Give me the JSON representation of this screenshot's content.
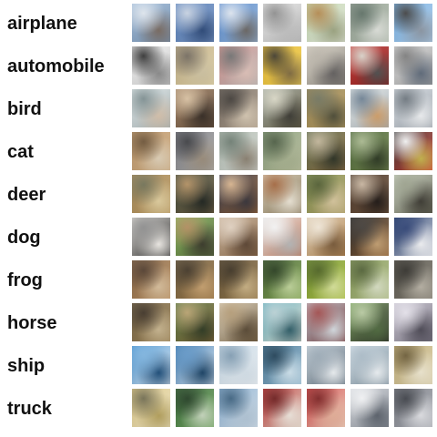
{
  "classes": [
    {
      "label": "airplane",
      "images": [
        {
          "name": "airplane-image-1",
          "colors": [
            "#9ab7d6",
            "#7d98b6",
            "#dfe6ee",
            "#7a6c63"
          ]
        },
        {
          "name": "airplane-image-2",
          "colors": [
            "#4f79b5",
            "#7e9ac6",
            "#c7d2e2",
            "#2d4a7a"
          ]
        },
        {
          "name": "airplane-image-3",
          "colors": [
            "#4f83c9",
            "#9bb9dc",
            "#dde5ef",
            "#6c6865"
          ]
        },
        {
          "name": "airplane-image-4",
          "colors": [
            "#e7e7e7",
            "#bdbdbd",
            "#8d8d8d",
            "#c2c2c2"
          ]
        },
        {
          "name": "airplane-image-5",
          "colors": [
            "#bcd2a7",
            "#e6eadf",
            "#b2874c",
            "#9ea682"
          ]
        },
        {
          "name": "airplane-image-6",
          "colors": [
            "#8e9a8d",
            "#b7c2b4",
            "#5c6e63",
            "#dfe2dc"
          ]
        },
        {
          "name": "airplane-image-7",
          "colors": [
            "#6aa8df",
            "#b5d3ef",
            "#3f3f3f",
            "#8d98a5"
          ]
        }
      ]
    },
    {
      "label": "automobile",
      "images": [
        {
          "name": "automobile-image-1",
          "colors": [
            "#f3f3f3",
            "#cfcfcf",
            "#2f2f2f",
            "#8b8b8b"
          ]
        },
        {
          "name": "automobile-image-2",
          "colors": [
            "#b7a57f",
            "#e6d7aa",
            "#736a5d",
            "#d0c4a3"
          ]
        },
        {
          "name": "automobile-image-3",
          "colors": [
            "#d78f89",
            "#b8b8b8",
            "#6f6f6f",
            "#e0c2b9"
          ]
        },
        {
          "name": "automobile-image-4",
          "colors": [
            "#e2b327",
            "#f4d45a",
            "#3f3929",
            "#806b40"
          ]
        },
        {
          "name": "automobile-image-5",
          "colors": [
            "#d7d1c4",
            "#8f8a82",
            "#b9b3a8",
            "#646160"
          ]
        },
        {
          "name": "automobile-image-6",
          "colors": [
            "#c53a37",
            "#8c1f1d",
            "#d8d2c8",
            "#4f4f4f"
          ]
        },
        {
          "name": "automobile-image-7",
          "colors": [
            "#d7d7d7",
            "#a4a4a4",
            "#7b7b7b",
            "#5f6b7b"
          ]
        }
      ]
    },
    {
      "label": "bird",
      "images": [
        {
          "name": "bird-image-1",
          "colors": [
            "#dfe7e8",
            "#a8b4b6",
            "#7c8d8f",
            "#d7c3ad"
          ]
        },
        {
          "name": "bird-image-2",
          "colors": [
            "#9a7b5d",
            "#6d5643",
            "#d7bf9f",
            "#362c24"
          ]
        },
        {
          "name": "bird-image-3",
          "colors": [
            "#6a6158",
            "#b9a895",
            "#3f3a35",
            "#d6c8b3"
          ]
        },
        {
          "name": "bird-image-4",
          "colors": [
            "#9fa79e",
            "#6d654b",
            "#d8d6c4",
            "#3c3b34"
          ]
        },
        {
          "name": "bird-image-5",
          "colors": [
            "#8c7a48",
            "#c0a56a",
            "#6f725c",
            "#4e4d38"
          ]
        },
        {
          "name": "bird-image-6",
          "colors": [
            "#e8ebe8",
            "#a7b1b9",
            "#6c7f91",
            "#d2a06a"
          ]
        },
        {
          "name": "bird-image-7",
          "colors": [
            "#d8dde2",
            "#9fa7b0",
            "#6b747c",
            "#f0f2f4"
          ]
        }
      ]
    },
    {
      "label": "cat",
      "images": [
        {
          "name": "cat-image-1",
          "colors": [
            "#b58f62",
            "#d6b48a",
            "#6a5134",
            "#e0d1b8"
          ]
        },
        {
          "name": "cat-image-2",
          "colors": [
            "#6f7078",
            "#b4b3b0",
            "#3b3c40",
            "#9b8d7b"
          ]
        },
        {
          "name": "cat-image-3",
          "colors": [
            "#a7b2a7",
            "#d9ddd8",
            "#6b7a6f",
            "#8b8171"
          ]
        },
        {
          "name": "cat-image-4",
          "colors": [
            "#79916e",
            "#c2c6a5",
            "#4b5b41",
            "#a7b18f"
          ]
        },
        {
          "name": "cat-image-5",
          "colors": [
            "#4d5e3f",
            "#9d7b4f",
            "#c0b397",
            "#2d3224"
          ]
        },
        {
          "name": "cat-image-6",
          "colors": [
            "#3f5b2f",
            "#7d8f57",
            "#a7b78d",
            "#2c3822"
          ]
        },
        {
          "name": "cat-image-7",
          "colors": [
            "#2b2b2b",
            "#e04a3e",
            "#f3f3f3",
            "#c7b54c"
          ]
        }
      ]
    },
    {
      "label": "deer",
      "images": [
        {
          "name": "deer-image-1",
          "colors": [
            "#9c7f4f",
            "#c4a36b",
            "#6f6f53",
            "#e1cf9f"
          ]
        },
        {
          "name": "deer-image-2",
          "colors": [
            "#2f3b2f",
            "#7e6b4b",
            "#b08d5f",
            "#1f241f"
          ]
        },
        {
          "name": "deer-image-3",
          "colors": [
            "#1f2b45",
            "#a56d3b",
            "#d7b28b",
            "#38343a"
          ]
        },
        {
          "name": "deer-image-4",
          "colors": [
            "#d5cbb4",
            "#8d7c5d",
            "#a2653c",
            "#ede6d7"
          ]
        },
        {
          "name": "deer-image-5",
          "colors": [
            "#7c8b4a",
            "#b4a66d",
            "#4e5a2e",
            "#d8c79e"
          ]
        },
        {
          "name": "deer-image-6",
          "colors": [
            "#3e2d22",
            "#7b5d44",
            "#c7b49e",
            "#1f1815"
          ]
        },
        {
          "name": "deer-image-7",
          "colors": [
            "#c1c9b8",
            "#6d6c5b",
            "#9aa08b",
            "#3d3b33"
          ]
        }
      ]
    },
    {
      "label": "dog",
      "images": [
        {
          "name": "dog-image-1",
          "colors": [
            "#d7d4cf",
            "#2f2f2f",
            "#8c8c8c",
            "#f0ede8"
          ]
        },
        {
          "name": "dog-image-2",
          "colors": [
            "#7fb052",
            "#5e6e45",
            "#b08a5b",
            "#3a3a2a"
          ]
        },
        {
          "name": "dog-image-3",
          "colors": [
            "#c8b29a",
            "#8e6b4a",
            "#e0d0bf",
            "#5d4634"
          ]
        },
        {
          "name": "dog-image-4",
          "colors": [
            "#e6e6e6",
            "#c57a5b",
            "#f4f4f4",
            "#b8b8b8"
          ]
        },
        {
          "name": "dog-image-5",
          "colors": [
            "#d8c7ad",
            "#b98b55",
            "#f0e6d6",
            "#7a5b3a"
          ]
        },
        {
          "name": "dog-image-6",
          "colors": [
            "#1f1f1f",
            "#9a6b3f",
            "#3f3a35",
            "#c4a072"
          ]
        },
        {
          "name": "dog-image-7",
          "colors": [
            "#112a5d",
            "#d9dde6",
            "#2b3f72",
            "#f3f4f7"
          ]
        }
      ]
    },
    {
      "label": "frog",
      "images": [
        {
          "name": "frog-image-1",
          "colors": [
            "#7a5a3a",
            "#c59a6b",
            "#4f3a2a",
            "#d9c09d"
          ]
        },
        {
          "name": "frog-image-2",
          "colors": [
            "#6b5a3c",
            "#a07b4b",
            "#3e3222",
            "#c7a16f"
          ]
        },
        {
          "name": "frog-image-3",
          "colors": [
            "#5b4a2f",
            "#9e8153",
            "#3a2f1f",
            "#c9b184"
          ]
        },
        {
          "name": "frog-image-4",
          "colors": [
            "#3c5a2b",
            "#8fb15e",
            "#253a1b",
            "#bfd49a"
          ]
        },
        {
          "name": "frog-image-5",
          "colors": [
            "#6a8a2a",
            "#b5c94b",
            "#4a5f1e",
            "#d8e39b"
          ]
        },
        {
          "name": "frog-image-6",
          "colors": [
            "#7b8f4f",
            "#b6c48a",
            "#4f5f33",
            "#d9e0c5"
          ]
        },
        {
          "name": "frog-image-7",
          "colors": [
            "#4d4a41",
            "#8a857a",
            "#2f2d28",
            "#b8b2a5"
          ]
        }
      ]
    },
    {
      "label": "horse",
      "images": [
        {
          "name": "horse-image-1",
          "colors": [
            "#6b5a3b",
            "#a58b5e",
            "#3b2f22",
            "#c9b690"
          ]
        },
        {
          "name": "horse-image-2",
          "colors": [
            "#4b6e3a",
            "#8a6b3d",
            "#b7a06d",
            "#2f3a22"
          ]
        },
        {
          "name": "horse-image-3",
          "colors": [
            "#d9ceb9",
            "#7f6a4b",
            "#b39a74",
            "#5a4a35"
          ]
        },
        {
          "name": "horse-image-4",
          "colors": [
            "#5aa8b7",
            "#e6e3d7",
            "#b8d0d4",
            "#2f5e69"
          ]
        },
        {
          "name": "horse-image-5",
          "colors": [
            "#b9c5cf",
            "#7b3a3a",
            "#a04a4a",
            "#d7dde2"
          ]
        },
        {
          "name": "horse-image-6",
          "colors": [
            "#7aa35e",
            "#2c2b28",
            "#b7c9a0",
            "#4f6a3f"
          ]
        },
        {
          "name": "horse-image-7",
          "colors": [
            "#c6c2ce",
            "#7f7a88",
            "#e4e1ea",
            "#4e4b57"
          ]
        }
      ]
    },
    {
      "label": "ship",
      "images": [
        {
          "name": "ship-image-1",
          "colors": [
            "#3c8ccd",
            "#e7eef5",
            "#7bb2de",
            "#1e4f7c"
          ]
        },
        {
          "name": "ship-image-2",
          "colors": [
            "#2f6fa8",
            "#e2edf7",
            "#5f95c6",
            "#194266"
          ]
        },
        {
          "name": "ship-image-3",
          "colors": [
            "#bcd0df",
            "#f1f5f8",
            "#7f9bb1",
            "#d6e2eb"
          ]
        },
        {
          "name": "ship-image-4",
          "colors": [
            "#3b6b8a",
            "#9ec3d9",
            "#1e3e54",
            "#d0e4ef"
          ]
        },
        {
          "name": "ship-image-5",
          "colors": [
            "#c8d3db",
            "#5f6f7d",
            "#9aa9b5",
            "#eef2f5"
          ]
        },
        {
          "name": "ship-image-6",
          "colors": [
            "#d6e2ea",
            "#7b8f9d",
            "#a9bac6",
            "#eef3f6"
          ]
        },
        {
          "name": "ship-image-7",
          "colors": [
            "#b7a36c",
            "#e3d7b2",
            "#6a5a35",
            "#f0e9d2"
          ]
        }
      ]
    },
    {
      "label": "truck",
      "images": [
        {
          "name": "truck-image-1",
          "colors": [
            "#d8c17a",
            "#f0e7c8",
            "#6f6a4d",
            "#b5a15c"
          ]
        },
        {
          "name": "truck-image-2",
          "colors": [
            "#2f5f2f",
            "#7bb16a",
            "#1f3a1f",
            "#c8d8bf"
          ]
        },
        {
          "name": "truck-image-3",
          "colors": [
            "#7ea5c8",
            "#d6e3ee",
            "#3a5f7d",
            "#b3c7d8"
          ]
        },
        {
          "name": "truck-image-4",
          "colors": [
            "#b72d2d",
            "#e5d6c7",
            "#6a1a1a",
            "#f0e7de"
          ]
        },
        {
          "name": "truck-image-5",
          "colors": [
            "#c93a3a",
            "#f2d2c0",
            "#7a1f1f",
            "#e7b19a"
          ]
        },
        {
          "name": "truck-image-6",
          "colors": [
            "#d4d7dc",
            "#8a9099",
            "#f2f3f5",
            "#5c636d"
          ]
        },
        {
          "name": "truck-image-7",
          "colors": [
            "#6c6f77",
            "#b4b7be",
            "#3b3e45",
            "#e1e2e6"
          ]
        }
      ]
    }
  ]
}
